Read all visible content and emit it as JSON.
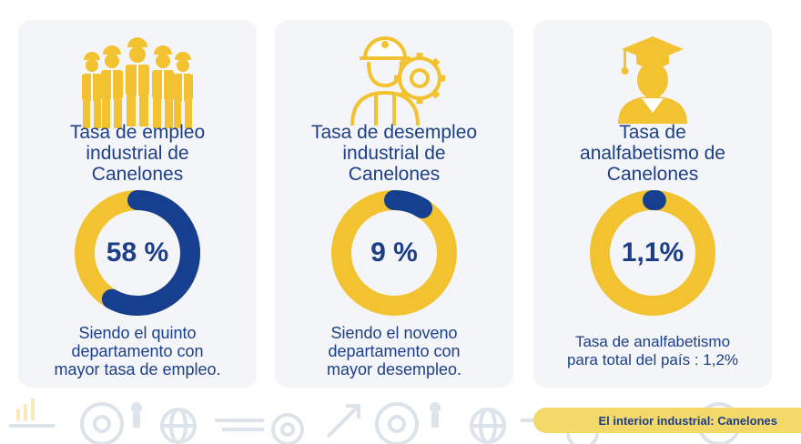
{
  "colors": {
    "accent": "#f2c230",
    "primary": "#173f8f",
    "card_bg": "#f3f5f9"
  },
  "cards": [
    {
      "icon": "workers-group-icon",
      "title_lines": [
        "Tasa de empleo",
        "industrial de",
        "Canelones"
      ],
      "value_label": "58 %",
      "percent": 58,
      "caption_lines": [
        "Siendo el quinto",
        "departamento con",
        "mayor tasa de empleo."
      ]
    },
    {
      "icon": "worker-gear-icon",
      "title_lines": [
        "Tasa de desempleo",
        "industrial de",
        "Canelones"
      ],
      "value_label": "9 %",
      "percent": 9,
      "caption_lines": [
        "Siendo el noveno",
        "departamento con",
        "mayor desempleo."
      ]
    },
    {
      "icon": "graduate-icon",
      "title_lines": [
        "Tasa de",
        "analfabetismo de",
        "Canelones"
      ],
      "value_label": "1,1%",
      "percent": 1.1,
      "caption_lines": [
        "Tasa de analfabetismo",
        "para total del país : 1,2%"
      ]
    }
  ],
  "footer": {
    "banner_text": "El interior industrial: Canelones"
  }
}
